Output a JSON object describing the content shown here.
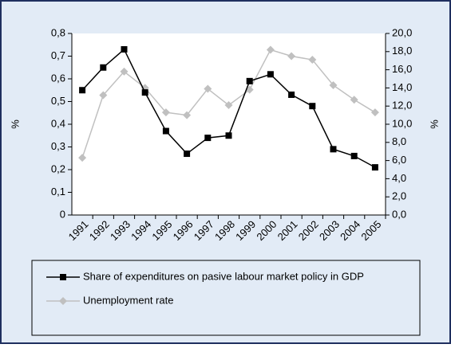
{
  "chart_data": {
    "type": "line",
    "categories": [
      "1991",
      "1992",
      "1993",
      "1994",
      "1995",
      "1996",
      "1997",
      "1998",
      "1999",
      "2000",
      "2001",
      "2002",
      "2003",
      "2004",
      "2005"
    ],
    "series": [
      {
        "name": "Share of expenditures on pasive labour market policy in GDP",
        "color": "#000000",
        "marker": "square",
        "values": [
          0.55,
          0.65,
          0.73,
          0.54,
          0.37,
          0.27,
          0.34,
          0.35,
          0.59,
          0.62,
          0.53,
          0.48,
          0.29,
          0.26,
          0.21
        ]
      },
      {
        "name": "Unemployment rate",
        "color": "#c0c0c0",
        "marker": "diamond",
        "axis": "y2",
        "values": [
          6.3,
          13.2,
          15.8,
          14.0,
          11.3,
          11.0,
          13.9,
          12.1,
          13.8,
          18.2,
          17.5,
          17.1,
          14.3,
          12.7,
          11.3
        ]
      }
    ],
    "y_label": "%",
    "y2_label": "%",
    "ylim": [
      0,
      0.8
    ],
    "yticks": [
      0,
      {
        "value": 0.1,
        "label": "0,1"
      },
      {
        "value": 0.2,
        "label": "0,2"
      },
      {
        "value": 0.3,
        "label": "0,3"
      },
      {
        "value": 0.4,
        "label": "0,4"
      },
      {
        "value": 0.5,
        "label": "0,5"
      },
      {
        "value": 0.6,
        "label": "0,6"
      },
      {
        "value": 0.7,
        "label": "0,7"
      },
      {
        "value": 0.8,
        "label": "0,8"
      }
    ],
    "y2lim": [
      0,
      20
    ],
    "y2ticks": [
      {
        "value": 0,
        "label": "0,0"
      },
      {
        "value": 2,
        "label": "2,0"
      },
      {
        "value": 4,
        "label": "4,0"
      },
      {
        "value": 6,
        "label": "6,0"
      },
      {
        "value": 8,
        "label": "8,0"
      },
      {
        "value": 10,
        "label": "10,0"
      },
      {
        "value": 12,
        "label": "12,0"
      },
      {
        "value": 14,
        "label": "14,0"
      },
      {
        "value": 16,
        "label": "16,0"
      },
      {
        "value": 18,
        "label": "18,0"
      },
      {
        "value": 20,
        "label": "20,0"
      }
    ],
    "grid": false,
    "legend": "bottom"
  }
}
